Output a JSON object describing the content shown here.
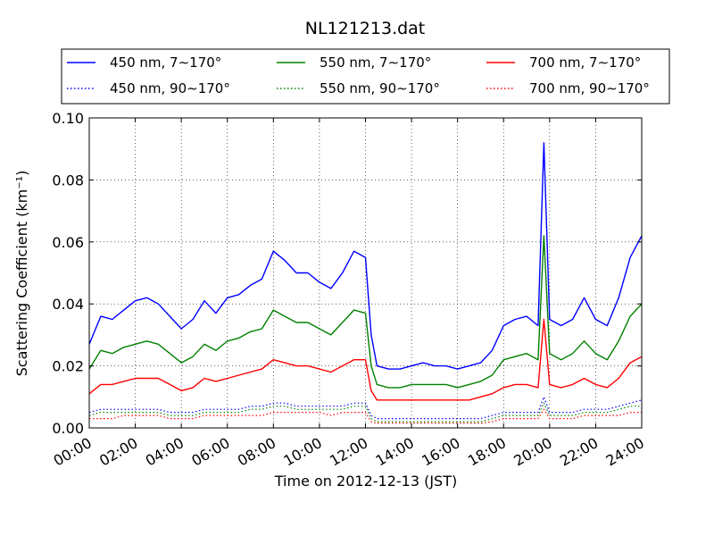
{
  "chart_data": {
    "type": "line",
    "title": "NL121213.dat",
    "xlabel": "Time on 2012-12-13 (JST)",
    "ylabel": "Scattering Coefficient (km⁻¹)",
    "x_unit": "hours",
    "xlim": [
      0,
      24
    ],
    "ylim": [
      0,
      0.1
    ],
    "grid": true,
    "legend_position": "top",
    "x_tick_labels": [
      "00:00",
      "02:00",
      "04:00",
      "06:00",
      "08:00",
      "10:00",
      "12:00",
      "14:00",
      "16:00",
      "18:00",
      "20:00",
      "22:00",
      "24:00"
    ],
    "y_tick_labels": [
      "0.00",
      "0.02",
      "0.04",
      "0.06",
      "0.08",
      "0.10"
    ],
    "x": [
      0,
      0.5,
      1,
      1.5,
      2,
      2.5,
      3,
      3.5,
      4,
      4.5,
      5,
      5.5,
      6,
      6.5,
      7,
      7.5,
      8,
      8.5,
      9,
      9.5,
      10,
      10.5,
      11,
      11.5,
      12,
      12.25,
      12.5,
      13,
      13.5,
      14,
      14.5,
      15,
      15.5,
      16,
      16.5,
      17,
      17.5,
      18,
      18.5,
      19,
      19.5,
      19.75,
      20,
      20.5,
      21,
      21.5,
      22,
      22.5,
      23,
      23.5,
      24
    ],
    "series": [
      {
        "name": "450 nm, 7∼170°",
        "color": "#0000ff",
        "style": "solid",
        "values": [
          0.027,
          0.036,
          0.035,
          0.038,
          0.041,
          0.042,
          0.04,
          0.036,
          0.032,
          0.035,
          0.041,
          0.037,
          0.042,
          0.043,
          0.046,
          0.048,
          0.057,
          0.054,
          0.05,
          0.05,
          0.047,
          0.045,
          0.05,
          0.057,
          0.055,
          0.03,
          0.02,
          0.019,
          0.019,
          0.02,
          0.021,
          0.02,
          0.02,
          0.019,
          0.02,
          0.021,
          0.025,
          0.033,
          0.035,
          0.036,
          0.033,
          0.092,
          0.035,
          0.033,
          0.035,
          0.042,
          0.035,
          0.033,
          0.042,
          0.055,
          0.062
        ]
      },
      {
        "name": "550 nm, 7∼170°",
        "color": "#008000",
        "style": "solid",
        "values": [
          0.019,
          0.025,
          0.024,
          0.026,
          0.027,
          0.028,
          0.027,
          0.024,
          0.021,
          0.023,
          0.027,
          0.025,
          0.028,
          0.029,
          0.031,
          0.032,
          0.038,
          0.036,
          0.034,
          0.034,
          0.032,
          0.03,
          0.034,
          0.038,
          0.037,
          0.02,
          0.014,
          0.013,
          0.013,
          0.014,
          0.014,
          0.014,
          0.014,
          0.013,
          0.014,
          0.015,
          0.017,
          0.022,
          0.023,
          0.024,
          0.022,
          0.062,
          0.024,
          0.022,
          0.024,
          0.028,
          0.024,
          0.022,
          0.028,
          0.036,
          0.04
        ]
      },
      {
        "name": "700 nm, 7∼170°",
        "color": "#ff0000",
        "style": "solid",
        "values": [
          0.011,
          0.014,
          0.014,
          0.015,
          0.016,
          0.016,
          0.016,
          0.014,
          0.012,
          0.013,
          0.016,
          0.015,
          0.016,
          0.017,
          0.018,
          0.019,
          0.022,
          0.021,
          0.02,
          0.02,
          0.019,
          0.018,
          0.02,
          0.022,
          0.022,
          0.012,
          0.009,
          0.009,
          0.009,
          0.009,
          0.009,
          0.009,
          0.009,
          0.009,
          0.009,
          0.01,
          0.011,
          0.013,
          0.014,
          0.014,
          0.013,
          0.035,
          0.014,
          0.013,
          0.014,
          0.016,
          0.014,
          0.013,
          0.016,
          0.021,
          0.023
        ]
      },
      {
        "name": "450 nm, 90∼170°",
        "color": "#0000ff",
        "style": "dotted",
        "values": [
          0.005,
          0.006,
          0.006,
          0.006,
          0.006,
          0.006,
          0.006,
          0.005,
          0.005,
          0.005,
          0.006,
          0.006,
          0.006,
          0.006,
          0.007,
          0.007,
          0.008,
          0.008,
          0.007,
          0.007,
          0.007,
          0.007,
          0.007,
          0.008,
          0.008,
          0.004,
          0.003,
          0.003,
          0.003,
          0.003,
          0.003,
          0.003,
          0.003,
          0.003,
          0.003,
          0.003,
          0.004,
          0.005,
          0.005,
          0.005,
          0.005,
          0.01,
          0.005,
          0.005,
          0.005,
          0.006,
          0.006,
          0.006,
          0.007,
          0.008,
          0.009
        ]
      },
      {
        "name": "550 nm, 90∼170°",
        "color": "#008000",
        "style": "dotted",
        "values": [
          0.004,
          0.005,
          0.005,
          0.005,
          0.005,
          0.005,
          0.005,
          0.004,
          0.004,
          0.004,
          0.005,
          0.005,
          0.005,
          0.005,
          0.006,
          0.006,
          0.007,
          0.007,
          0.006,
          0.006,
          0.006,
          0.006,
          0.006,
          0.007,
          0.007,
          0.003,
          0.002,
          0.002,
          0.002,
          0.002,
          0.002,
          0.002,
          0.002,
          0.002,
          0.002,
          0.002,
          0.003,
          0.004,
          0.004,
          0.004,
          0.004,
          0.008,
          0.004,
          0.004,
          0.004,
          0.005,
          0.005,
          0.005,
          0.006,
          0.007,
          0.007
        ]
      },
      {
        "name": "700 nm, 90∼170°",
        "color": "#ff0000",
        "style": "dotted",
        "values": [
          0.003,
          0.003,
          0.003,
          0.004,
          0.004,
          0.004,
          0.004,
          0.003,
          0.003,
          0.003,
          0.004,
          0.004,
          0.004,
          0.004,
          0.004,
          0.004,
          0.005,
          0.005,
          0.005,
          0.005,
          0.005,
          0.004,
          0.005,
          0.005,
          0.005,
          0.002,
          0.0015,
          0.0015,
          0.0015,
          0.0015,
          0.0015,
          0.0015,
          0.0015,
          0.0015,
          0.0015,
          0.0015,
          0.002,
          0.003,
          0.003,
          0.003,
          0.003,
          0.006,
          0.003,
          0.003,
          0.003,
          0.004,
          0.004,
          0.004,
          0.004,
          0.005,
          0.005
        ]
      }
    ]
  }
}
